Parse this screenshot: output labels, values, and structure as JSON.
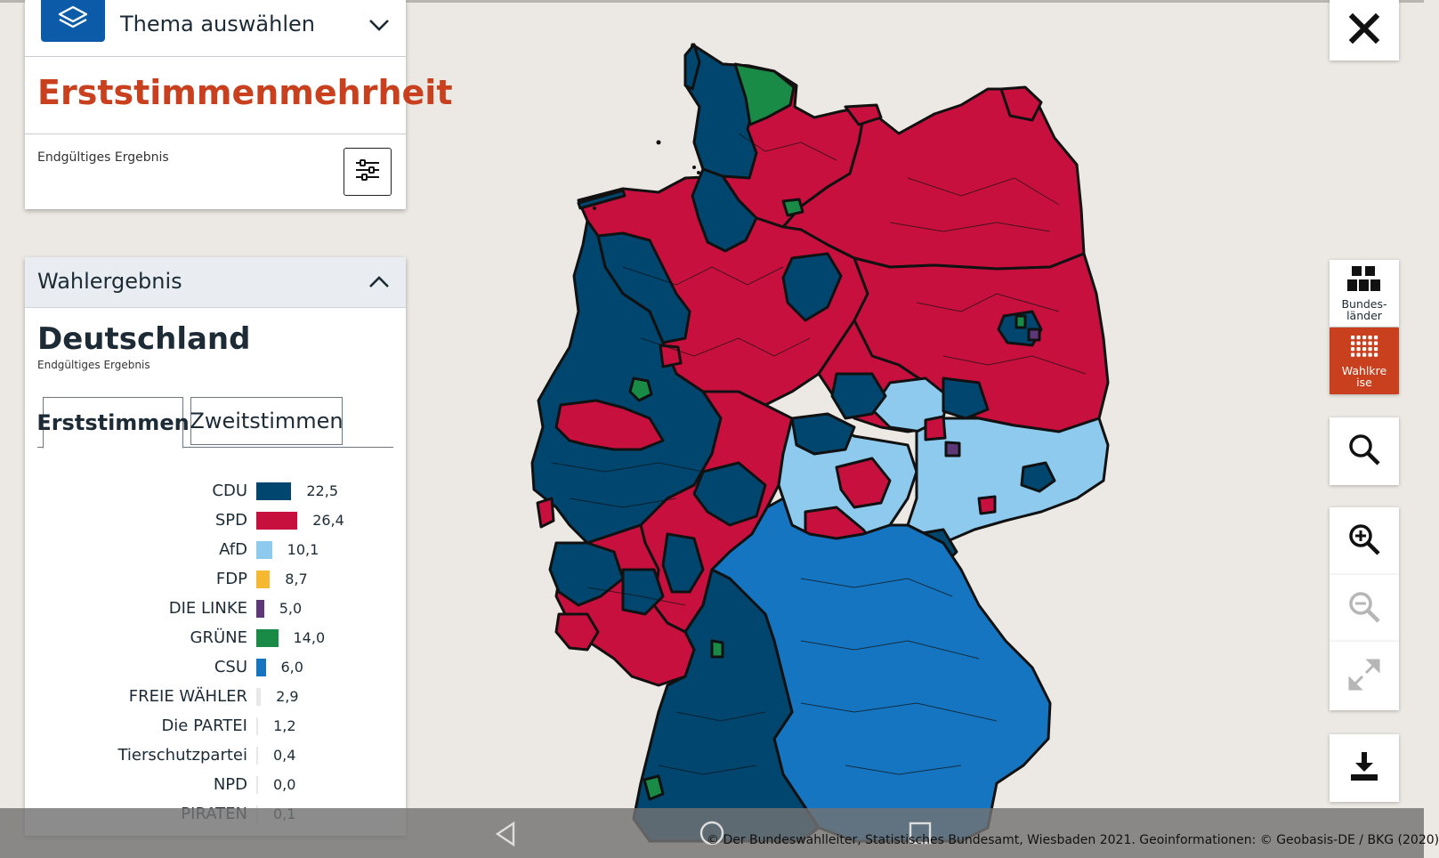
{
  "theme": {
    "label": "Thema auswählen"
  },
  "title": "Erststimmenmehrheit",
  "status": "Endgültiges Ergebnis",
  "result_panel": {
    "header": "Wahlergebnis",
    "region": "Deutschland",
    "status": "Endgültiges Ergebnis",
    "tabs": [
      "Erststimmen",
      "Zweitstimmen"
    ]
  },
  "parties": [
    {
      "name": "CDU",
      "value": "22,5",
      "pct": 22.5,
      "color": "#00466e"
    },
    {
      "name": "SPD",
      "value": "26,4",
      "pct": 26.4,
      "color": "#c8103f"
    },
    {
      "name": "AfD",
      "value": "10,1",
      "pct": 10.1,
      "color": "#8dcaee"
    },
    {
      "name": "FDP",
      "value": "8,7",
      "pct": 8.7,
      "color": "#f5b82e"
    },
    {
      "name": "DIE LINKE",
      "value": "5,0",
      "pct": 5.0,
      "color": "#5e3778"
    },
    {
      "name": "GRÜNE",
      "value": "14,0",
      "pct": 14.0,
      "color": "#1a8a47"
    },
    {
      "name": "CSU",
      "value": "6,0",
      "pct": 6.0,
      "color": "#1575c0"
    },
    {
      "name": "FREIE WÄHLER",
      "value": "2,9",
      "pct": 2.9,
      "color": "#e8e8e8"
    },
    {
      "name": "Die PARTEI",
      "value": "1,2",
      "pct": 1.2,
      "color": "#e8e8e8"
    },
    {
      "name": "Tierschutzpartei",
      "value": "0,4",
      "pct": 0.4,
      "color": "#e8e8e8"
    },
    {
      "name": "NPD",
      "value": "0,0",
      "pct": 0.0,
      "color": "#e8e8e8"
    },
    {
      "name": "PIRATEN",
      "value": "0,1",
      "pct": 0.1,
      "color": "#e8e8e8"
    }
  ],
  "toolbar": {
    "bundeslaender": "Bundes-\nländer",
    "wahlkreise": "Wahlkre\nise"
  },
  "copyright": "© Der Bundeswahlleiter, Statistisches Bundesamt, Wiesbaden 2021. Geoinformationen: © Geobasis-DE / BKG (2020)",
  "map_colors": {
    "spd": "#c8103f",
    "cdu": "#00466e",
    "afd": "#8dcaee",
    "csu": "#1575c0",
    "gruene": "#1a8a47",
    "linke": "#5e3778"
  }
}
